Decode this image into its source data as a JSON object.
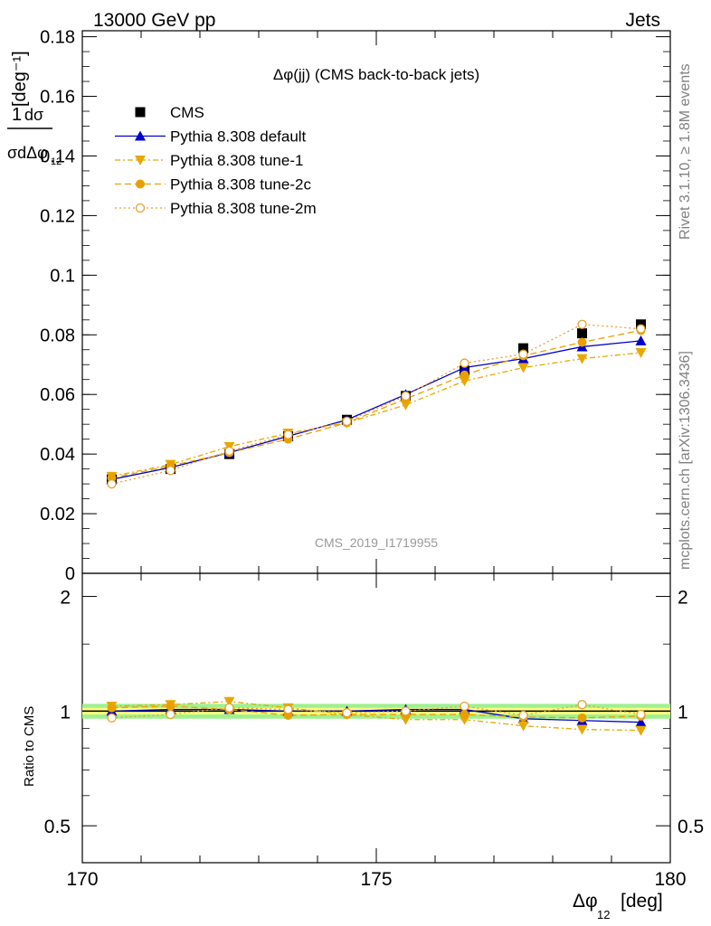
{
  "header": {
    "left": "13000 GeV pp",
    "right": "Jets"
  },
  "side_text": {
    "top": "Rivet 3.1.10, ≥ 1.8M events",
    "bottom": "mcplots.cern.ch [arXiv:1306.3436]"
  },
  "watermark": "CMS_2019_I1719955",
  "colors": {
    "cms": "#000000",
    "default": "#0000cc",
    "tune1": "#e8a800",
    "tune2c": "#e8a000",
    "tune2m": "#e8a030",
    "band_inner": "#ffff80",
    "band_outer": "#a0f090"
  },
  "chart_data": [
    {
      "type": "line",
      "title": "Δφ(jj) (CMS back-to-back jets)",
      "ylabel": "1/σ dσ/dΔφ12 [deg⁻¹]",
      "xlim": [
        170,
        180
      ],
      "ylim": [
        0,
        0.182
      ],
      "yticks": [
        "0",
        "0.02",
        "0.04",
        "0.06",
        "0.08",
        "0.1",
        "0.12",
        "0.14",
        "0.16",
        "0.18"
      ],
      "x": [
        170.5,
        171.5,
        172.5,
        173.5,
        174.5,
        175.5,
        176.5,
        177.5,
        178.5,
        179.5
      ],
      "series": [
        {
          "name": "CMS",
          "marker": "square",
          "values": [
            0.0315,
            0.035,
            0.04,
            0.046,
            0.0515,
            0.0595,
            0.068,
            0.0755,
            0.0805,
            0.0835
          ]
        },
        {
          "name": "Pythia 8.308 default",
          "marker": "triangle-up",
          "values": [
            0.0315,
            0.0355,
            0.0405,
            0.046,
            0.0515,
            0.06,
            0.069,
            0.072,
            0.076,
            0.078
          ]
        },
        {
          "name": "Pythia 8.308 tune-1",
          "marker": "triangle-down",
          "values": [
            0.0325,
            0.0365,
            0.0425,
            0.047,
            0.0505,
            0.0565,
            0.0645,
            0.069,
            0.072,
            0.074
          ]
        },
        {
          "name": "Pythia 8.308 tune-2c",
          "marker": "circle",
          "values": [
            0.032,
            0.036,
            0.0405,
            0.045,
            0.0505,
            0.0585,
            0.0665,
            0.073,
            0.0775,
            0.0815
          ]
        },
        {
          "name": "Pythia 8.308 tune-2m",
          "marker": "circle-open",
          "values": [
            0.03,
            0.0345,
            0.041,
            0.0465,
            0.051,
            0.0595,
            0.0705,
            0.0735,
            0.0835,
            0.082
          ]
        }
      ]
    },
    {
      "type": "line",
      "ylabel": "Ratio to CMS",
      "xlabel": "Δφ12 [deg]",
      "xlim": [
        170,
        180
      ],
      "ylim": [
        0.4,
        2.3
      ],
      "yscale": "log",
      "yticks": [
        "0.5",
        "1",
        "2"
      ],
      "xticks": [
        "170",
        "175",
        "180"
      ],
      "x": [
        170.5,
        171.5,
        172.5,
        173.5,
        174.5,
        175.5,
        176.5,
        177.5,
        178.5,
        179.5
      ],
      "band": {
        "inner": 0.02,
        "outer": 0.045
      },
      "series": [
        {
          "name": "Pythia 8.308 default",
          "values": [
            1.0,
            1.01,
            1.01,
            1.0,
            1.0,
            1.01,
            1.01,
            0.955,
            0.945,
            0.935
          ]
        },
        {
          "name": "Pythia 8.308 tune-1",
          "values": [
            1.03,
            1.04,
            1.06,
            1.02,
            0.98,
            0.95,
            0.95,
            0.915,
            0.895,
            0.89
          ]
        },
        {
          "name": "Pythia 8.308 tune-2c",
          "values": [
            1.02,
            1.03,
            1.01,
            0.975,
            0.98,
            0.98,
            0.98,
            0.965,
            0.96,
            0.97
          ]
        },
        {
          "name": "Pythia 8.308 tune-2m",
          "values": [
            0.96,
            0.98,
            1.02,
            1.01,
            0.99,
            1.0,
            1.03,
            0.975,
            1.04,
            0.98
          ]
        }
      ]
    }
  ]
}
